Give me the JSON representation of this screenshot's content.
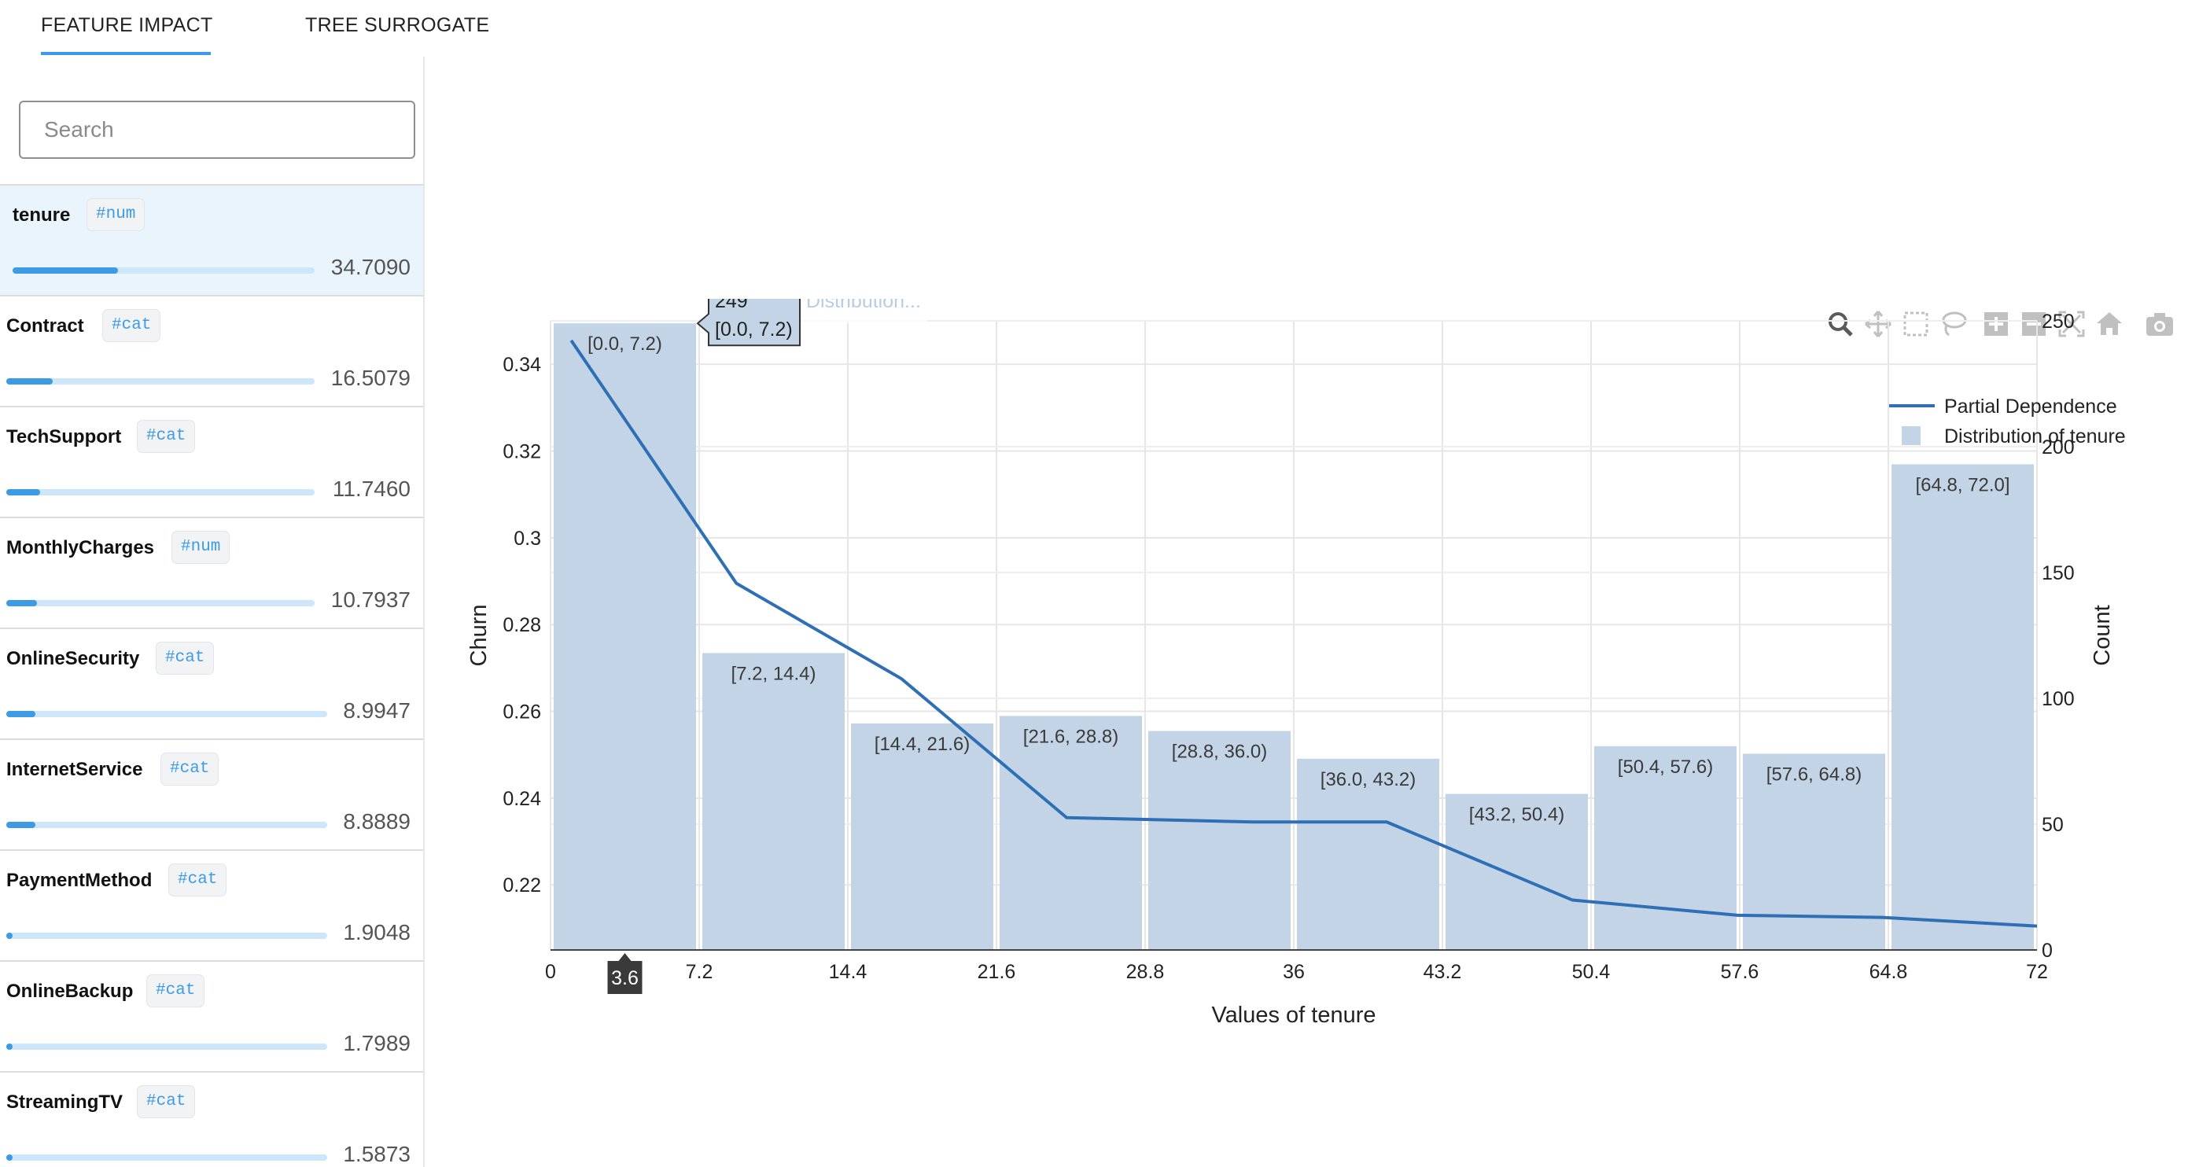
{
  "tabs": [
    {
      "label": "FEATURE IMPACT",
      "active": true
    },
    {
      "label": "TREE SURROGATE",
      "active": false
    }
  ],
  "search": {
    "placeholder": "Search",
    "value": ""
  },
  "features": [
    {
      "name": "tenure",
      "tag": "#num",
      "value": "34.7090",
      "impact_fraction": 0.35,
      "selected": true
    },
    {
      "name": "Contract",
      "tag": "#cat",
      "value": "16.5079",
      "impact_fraction": 0.15,
      "selected": false
    },
    {
      "name": "TechSupport",
      "tag": "#cat",
      "value": "11.7460",
      "impact_fraction": 0.11,
      "selected": false
    },
    {
      "name": "MonthlyCharges",
      "tag": "#num",
      "value": "10.7937",
      "impact_fraction": 0.1,
      "selected": false
    },
    {
      "name": "OnlineSecurity",
      "tag": "#cat",
      "value": "8.9947",
      "impact_fraction": 0.09,
      "selected": false
    },
    {
      "name": "InternetService",
      "tag": "#cat",
      "value": "8.8889",
      "impact_fraction": 0.09,
      "selected": false
    },
    {
      "name": "PaymentMethod",
      "tag": "#cat",
      "value": "1.9048",
      "impact_fraction": 0.02,
      "selected": false
    },
    {
      "name": "OnlineBackup",
      "tag": "#cat",
      "value": "1.7989",
      "impact_fraction": 0.02,
      "selected": false
    },
    {
      "name": "StreamingTV",
      "tag": "#cat",
      "value": "1.5873",
      "impact_fraction": 0.02,
      "selected": false
    }
  ],
  "modebar_icons": [
    "zoom-icon",
    "pan-icon",
    "box-select-icon",
    "lasso-select-icon",
    "zoom-in-icon",
    "zoom-out-icon",
    "autoscale-icon",
    "reset-axes-icon",
    "camera-icon"
  ],
  "colors": {
    "accent": "#3d9be6",
    "bar": "#c2d4e6",
    "line": "#2e6fb5",
    "selected_row": "#e9f4fd",
    "track": "#cde6fa"
  },
  "chart_data": {
    "type": "bar",
    "xlabel": "Values of tenure",
    "ylabel": "Churn",
    "y2label": "Count",
    "xlim": [
      0,
      72
    ],
    "ylim": [
      0.205,
      0.35
    ],
    "y2lim": [
      0,
      250
    ],
    "x_ticks": [
      "0",
      "7.2",
      "14.4",
      "21.6",
      "28.8",
      "36",
      "43.2",
      "50.4",
      "57.6",
      "64.8",
      "72"
    ],
    "y_ticks": [
      "0.22",
      "0.24",
      "0.26",
      "0.28",
      "0.3",
      "0.32",
      "0.34"
    ],
    "y2_ticks": [
      "0",
      "50",
      "100",
      "150",
      "200",
      "250"
    ],
    "grid": true,
    "legend_position": "top-right",
    "series": [
      {
        "name": "Partial Dependence",
        "type": "line",
        "x": [
          1,
          9,
          17,
          25,
          34,
          40.5,
          49.5,
          57.5,
          64.5,
          72
        ],
        "y": [
          0.3455,
          0.2895,
          0.2675,
          0.2355,
          0.2345,
          0.2345,
          0.2165,
          0.213,
          0.2125,
          0.2105
        ]
      },
      {
        "name": "Distribution of tenure",
        "type": "bar",
        "categories": [
          "[0.0, 7.2)",
          "[7.2, 14.4)",
          "[14.4, 21.6)",
          "[21.6, 28.8)",
          "[28.8, 36.0)",
          "[36.0, 43.2)",
          "[43.2, 50.4)",
          "[50.4, 57.6)",
          "[57.6, 64.8)",
          "[64.8, 72.0]"
        ],
        "values": [
          249,
          118,
          90,
          93,
          87,
          76,
          62,
          81,
          78,
          193
        ]
      }
    ],
    "hover": {
      "count": "249",
      "label": "[0.0, 7.2)",
      "trace": "Distribution...",
      "x_spike": "3.6"
    }
  }
}
